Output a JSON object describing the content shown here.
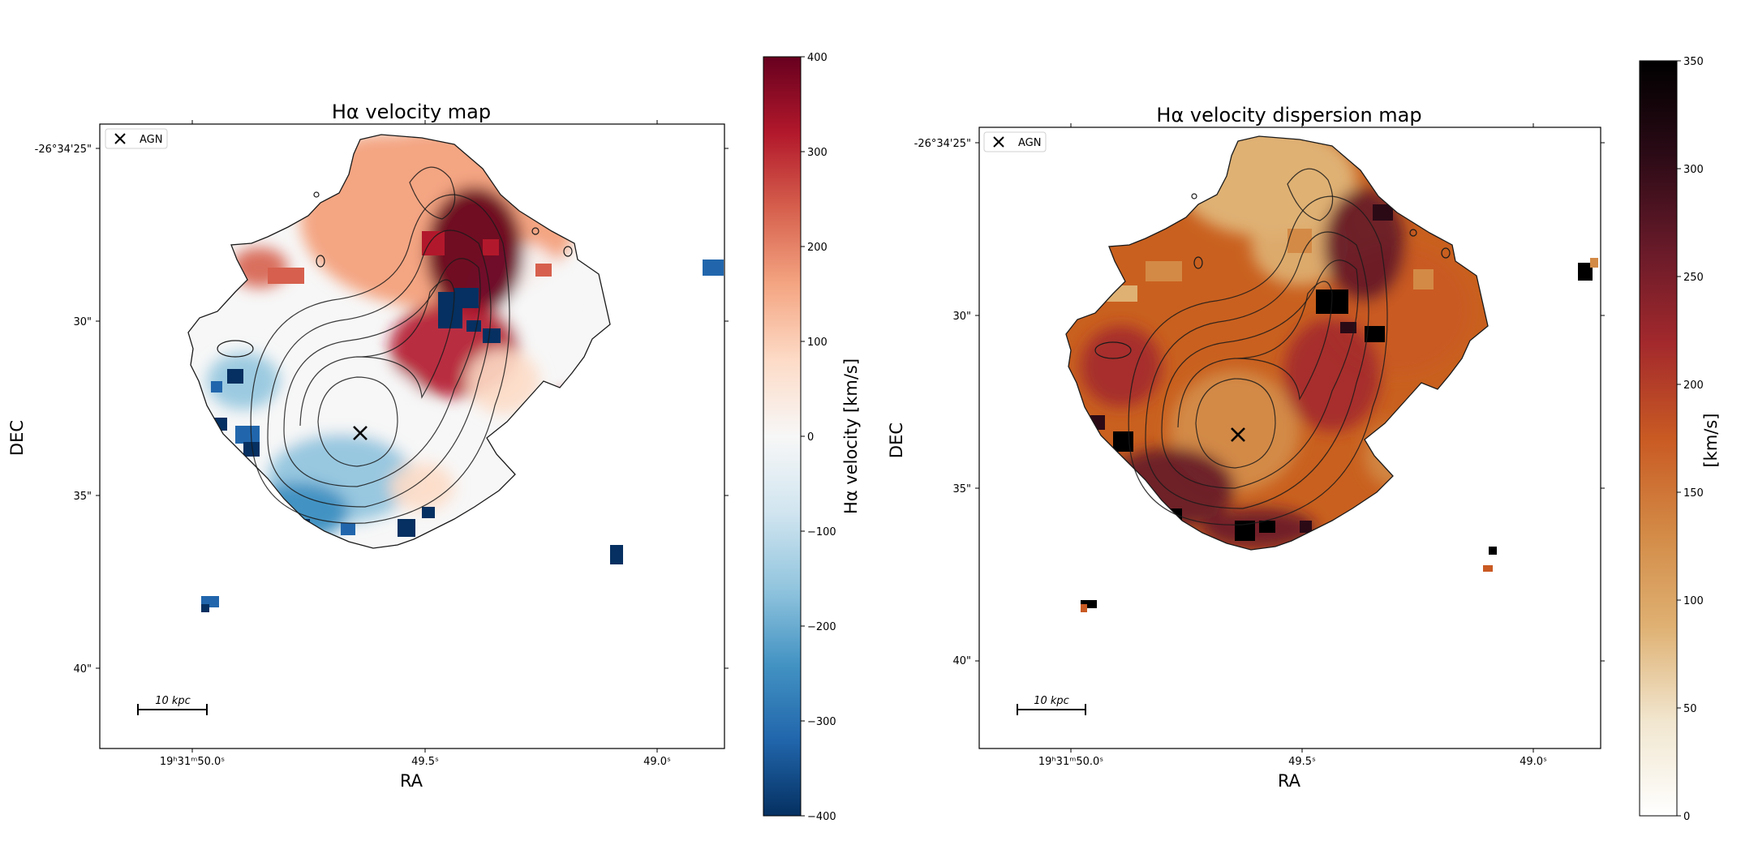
{
  "colors": {
    "rdbu": [
      "#053061",
      "#2166ac",
      "#4393c3",
      "#92c5de",
      "#d1e5f0",
      "#f7f7f7",
      "#fddbc7",
      "#f4a582",
      "#d6604d",
      "#b2182b",
      "#67001f"
    ],
    "heat": [
      "#ffffff",
      "#f1e6cf",
      "#dfb173",
      "#d38a46",
      "#c95a23",
      "#a3292c",
      "#681a29",
      "#2b0a16",
      "#000000"
    ],
    "axes": "#000000",
    "contour": "#1a1a1a"
  },
  "chart_data": [
    {
      "type": "heatmap",
      "title": "Hα velocity map",
      "xlabel": "RA",
      "ylabel": "DEC",
      "x_ticks": [
        "19ʰ31ᵐ50.0ˢ",
        "49.5ˢ",
        "49.0ˢ"
      ],
      "y_ticks": [
        "-26°34'25\"",
        "30\"",
        "35\"",
        "40\""
      ],
      "legend": [
        {
          "marker": "x",
          "label": "AGN"
        }
      ],
      "scale_bar": "10 kpc",
      "colorbar": {
        "label": "Hα velocity [km/s]",
        "range": [
          -400,
          400
        ],
        "ticks": [
          400,
          300,
          200,
          100,
          0,
          -100,
          -200,
          -300,
          -400
        ],
        "colormap": "RdBu_r"
      },
      "legend_placement": "top-left",
      "grid": false
    },
    {
      "type": "heatmap",
      "title": "Hα velocity dispersion map",
      "xlabel": "RA",
      "ylabel": "DEC",
      "x_ticks": [
        "19ʰ31ᵐ50.0ˢ",
        "49.5ˢ",
        "49.0ˢ"
      ],
      "y_ticks": [
        "-26°34'25\"",
        "30\"",
        "35\"",
        "40\""
      ],
      "legend": [
        {
          "marker": "x",
          "label": "AGN"
        }
      ],
      "scale_bar": "10 kpc",
      "colorbar": {
        "label": "[km/s]",
        "range": [
          0,
          350
        ],
        "ticks": [
          350,
          300,
          250,
          200,
          150,
          100,
          50,
          0
        ],
        "colormap": "gist_heat_r"
      },
      "legend_placement": "top-left",
      "grid": false
    }
  ]
}
